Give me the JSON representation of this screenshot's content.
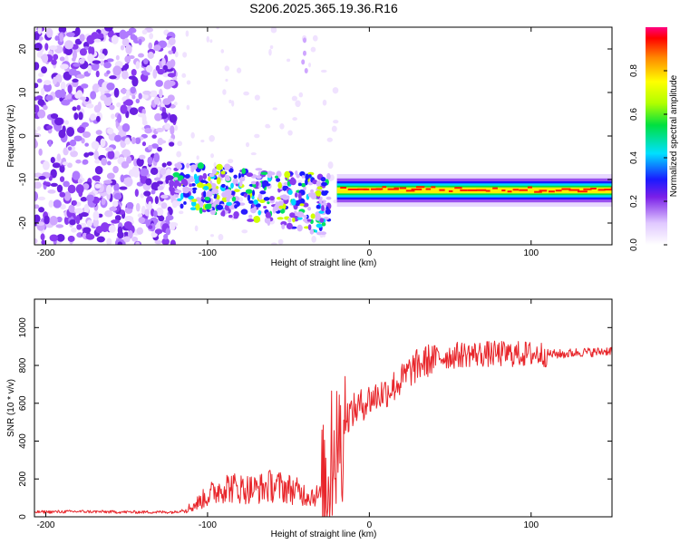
{
  "title": "S206.2025.365.19.36.R16",
  "chart_data": [
    {
      "type": "heatmap",
      "xlabel": "Height of straight line (km)",
      "ylabel": "Frequency (Hz)",
      "xlim": [
        -207,
        150
      ],
      "ylim": [
        -25,
        25
      ],
      "xticks": [
        -200,
        -100,
        0,
        100
      ],
      "yticks": [
        -20,
        -10,
        0,
        10,
        20
      ],
      "colorbar": {
        "label": "Normalized spectral amplitude",
        "range": [
          0,
          1
        ],
        "ticks": [
          0.0,
          0.2,
          0.4,
          0.6,
          0.8
        ]
      },
      "features": {
        "noise_region_km": [
          -207,
          -120
        ],
        "scatter_region_km": [
          -120,
          -25
        ],
        "steady_line_km": [
          -20,
          150
        ],
        "steady_line_freq_hz": -12.5
      }
    },
    {
      "type": "line",
      "xlabel": "Height of straight line (km)",
      "ylabel": "SNR (10 * v/v)",
      "xlim": [
        -207,
        150
      ],
      "ylim": [
        0,
        1150
      ],
      "xticks": [
        -200,
        -100,
        0,
        100
      ],
      "yticks": [
        0,
        200,
        400,
        600,
        800,
        1000
      ],
      "series": [
        {
          "name": "SNR",
          "color": "#e8262b",
          "x": [
            -207,
            -180,
            -150,
            -120,
            -110,
            -100,
            -90,
            -80,
            -70,
            -60,
            -50,
            -40,
            -30,
            -25,
            -22,
            -20,
            -18,
            -15,
            -10,
            -5,
            0,
            5,
            10,
            15,
            20,
            25,
            30,
            40,
            50,
            60,
            70,
            80,
            90,
            100,
            110,
            120,
            130,
            140,
            150
          ],
          "y": [
            25,
            28,
            25,
            25,
            50,
            110,
            160,
            150,
            145,
            165,
            150,
            120,
            110,
            160,
            300,
            430,
            380,
            520,
            560,
            590,
            620,
            640,
            660,
            690,
            720,
            770,
            800,
            840,
            850,
            860,
            860,
            860,
            860,
            860,
            860,
            860,
            870,
            870,
            880
          ]
        }
      ]
    }
  ]
}
